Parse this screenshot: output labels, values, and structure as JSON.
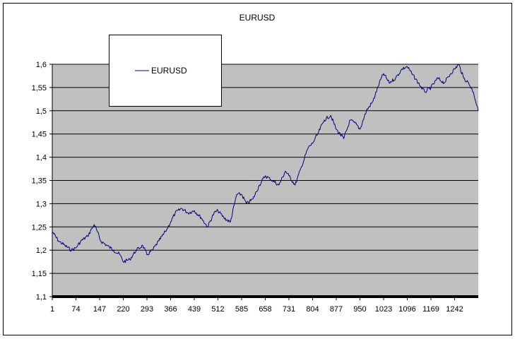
{
  "chart_data": {
    "type": "line",
    "title": "EURUSD",
    "xlabel": "",
    "ylabel": "",
    "ylim": [
      1.1,
      1.6
    ],
    "y_ticks": [
      "1,1",
      "1,15",
      "1,2",
      "1,25",
      "1,3",
      "1,35",
      "1,4",
      "1,45",
      "1,5",
      "1,55",
      "1,6"
    ],
    "x_ticks": [
      "1",
      "74",
      "147",
      "220",
      "293",
      "366",
      "439",
      "512",
      "585",
      "658",
      "731",
      "804",
      "877",
      "950",
      "1023",
      "1096",
      "1169",
      "1242"
    ],
    "x_range": [
      1,
      1315
    ],
    "grid": "horizontal",
    "legend": "top-left",
    "background_color": "#c0c0c0",
    "line_color": "#000080",
    "series": [
      {
        "name": "EURUSD",
        "x": [
          1,
          20,
          40,
          60,
          74,
          90,
          110,
          130,
          140,
          150,
          170,
          190,
          210,
          220,
          240,
          260,
          280,
          293,
          310,
          330,
          350,
          366,
          380,
          400,
          420,
          439,
          460,
          480,
          500,
          512,
          530,
          550,
          570,
          585,
          600,
          620,
          640,
          658,
          680,
          700,
          720,
          731,
          750,
          770,
          790,
          804,
          820,
          840,
          860,
          877,
          900,
          920,
          940,
          950,
          970,
          990,
          1010,
          1023,
          1040,
          1060,
          1080,
          1096,
          1110,
          1130,
          1150,
          1169,
          1190,
          1210,
          1230,
          1242,
          1255,
          1270,
          1285,
          1300,
          1315
        ],
        "values": [
          1.24,
          1.22,
          1.21,
          1.2,
          1.205,
          1.22,
          1.23,
          1.255,
          1.24,
          1.22,
          1.21,
          1.2,
          1.19,
          1.175,
          1.18,
          1.2,
          1.21,
          1.19,
          1.2,
          1.22,
          1.24,
          1.26,
          1.28,
          1.29,
          1.28,
          1.285,
          1.27,
          1.25,
          1.28,
          1.285,
          1.27,
          1.26,
          1.32,
          1.32,
          1.3,
          1.31,
          1.34,
          1.36,
          1.35,
          1.34,
          1.37,
          1.36,
          1.34,
          1.38,
          1.42,
          1.43,
          1.45,
          1.48,
          1.49,
          1.46,
          1.44,
          1.48,
          1.47,
          1.46,
          1.5,
          1.52,
          1.56,
          1.58,
          1.56,
          1.57,
          1.59,
          1.595,
          1.58,
          1.56,
          1.54,
          1.55,
          1.57,
          1.56,
          1.58,
          1.59,
          1.6,
          1.57,
          1.56,
          1.54,
          1.5
        ]
      }
    ]
  }
}
